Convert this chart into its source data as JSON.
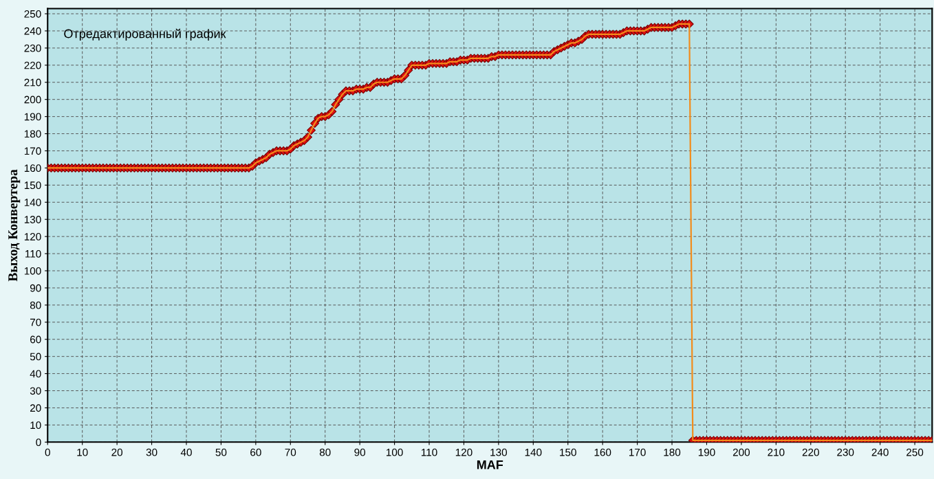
{
  "chart_data": {
    "type": "line",
    "xlabel": "MAF",
    "ylabel": "Выход Конвертера",
    "annotations": [
      "Отредактированный график"
    ],
    "xlim": [
      0,
      255
    ],
    "ylim": [
      0,
      253
    ],
    "xticks": [
      0,
      10,
      20,
      30,
      40,
      50,
      60,
      70,
      80,
      90,
      100,
      110,
      120,
      130,
      140,
      150,
      160,
      170,
      180,
      190,
      200,
      210,
      220,
      230,
      240,
      250
    ],
    "yticks": [
      0,
      10,
      20,
      30,
      40,
      50,
      60,
      70,
      80,
      90,
      100,
      110,
      120,
      130,
      140,
      150,
      160,
      170,
      180,
      190,
      200,
      210,
      220,
      230,
      240,
      250
    ],
    "grid": true,
    "marker": "diamond",
    "line_style": "solid",
    "series": [
      {
        "color": "#dd1111",
        "x": [
          0,
          1,
          2,
          3,
          4,
          5,
          6,
          7,
          8,
          9,
          10,
          11,
          12,
          13,
          14,
          15,
          16,
          17,
          18,
          19,
          20,
          21,
          22,
          23,
          24,
          25,
          26,
          27,
          28,
          29,
          30,
          31,
          32,
          33,
          34,
          35,
          36,
          37,
          38,
          39,
          40,
          41,
          42,
          43,
          44,
          45,
          46,
          47,
          48,
          49,
          50,
          51,
          52,
          53,
          54,
          55,
          56,
          57,
          58,
          59,
          60,
          61,
          62,
          63,
          64,
          65,
          66,
          67,
          68,
          69,
          70,
          71,
          72,
          73,
          74,
          75,
          76,
          77,
          78,
          79,
          80,
          81,
          82,
          83,
          84,
          85,
          86,
          87,
          88,
          89,
          90,
          91,
          92,
          93,
          94,
          95,
          96,
          97,
          98,
          99,
          100,
          101,
          102,
          103,
          104,
          105,
          106,
          107,
          108,
          109,
          110,
          111,
          112,
          113,
          114,
          115,
          116,
          117,
          118,
          119,
          120,
          121,
          122,
          123,
          124,
          125,
          126,
          127,
          128,
          129,
          130,
          131,
          132,
          133,
          134,
          135,
          136,
          137,
          138,
          139,
          140,
          141,
          142,
          143,
          144,
          145,
          146,
          147,
          148,
          149,
          150,
          151,
          152,
          153,
          154,
          155,
          156,
          157,
          158,
          159,
          160,
          161,
          162,
          163,
          164,
          165,
          166,
          167,
          168,
          169,
          170,
          171,
          172,
          173,
          174,
          175,
          176,
          177,
          178,
          179,
          180,
          181,
          182,
          183,
          184,
          185,
          186,
          187,
          188,
          189,
          190,
          191,
          192,
          193,
          194,
          195,
          196,
          197,
          198,
          199,
          200,
          201,
          202,
          203,
          204,
          205,
          206,
          207,
          208,
          209,
          210,
          211,
          212,
          213,
          214,
          215,
          216,
          217,
          218,
          219,
          220,
          221,
          222,
          223,
          224,
          225,
          226,
          227,
          228,
          229,
          230,
          231,
          232,
          233,
          234,
          235,
          236,
          237,
          238,
          239,
          240,
          241,
          242,
          243,
          244,
          245,
          246,
          247,
          248,
          249,
          250,
          251,
          252,
          253,
          254,
          255
        ],
        "values": [
          160,
          160,
          160,
          160,
          160,
          160,
          160,
          160,
          160,
          160,
          160,
          160,
          160,
          160,
          160,
          160,
          160,
          160,
          160,
          160,
          160,
          160,
          160,
          160,
          160,
          160,
          160,
          160,
          160,
          160,
          160,
          160,
          160,
          160,
          160,
          160,
          160,
          160,
          160,
          160,
          160,
          160,
          160,
          160,
          160,
          160,
          160,
          160,
          160,
          160,
          160,
          160,
          160,
          160,
          160,
          160,
          160,
          160,
          160,
          161,
          163,
          164,
          165,
          166,
          168,
          169,
          170,
          170,
          170,
          170,
          171,
          173,
          174,
          175,
          176,
          178,
          182,
          186,
          189,
          190,
          190,
          191,
          193,
          197,
          200,
          203,
          205,
          205,
          205,
          206,
          206,
          206,
          207,
          207,
          209,
          210,
          210,
          210,
          210,
          211,
          212,
          212,
          212,
          214,
          217,
          220,
          220,
          220,
          220,
          220,
          221,
          221,
          221,
          221,
          221,
          221,
          222,
          222,
          222,
          223,
          223,
          223,
          224,
          224,
          224,
          224,
          224,
          224,
          225,
          225,
          226,
          226,
          226,
          226,
          226,
          226,
          226,
          226,
          226,
          226,
          226,
          226,
          226,
          226,
          226,
          226,
          228,
          229,
          230,
          231,
          232,
          233,
          233,
          234,
          235,
          237,
          238,
          238,
          238,
          238,
          238,
          238,
          238,
          238,
          238,
          238,
          239,
          240,
          240,
          240,
          240,
          240,
          240,
          241,
          242,
          242,
          242,
          242,
          242,
          242,
          242,
          243,
          244,
          244,
          244,
          244,
          1,
          1,
          1,
          1,
          1,
          1,
          1,
          1,
          1,
          1,
          1,
          1,
          1,
          1,
          1,
          1,
          1,
          1,
          1,
          1,
          1,
          1,
          1,
          1,
          1,
          1,
          1,
          1,
          1,
          1,
          1,
          1,
          1,
          1,
          1,
          1,
          1,
          1,
          1,
          1,
          1,
          1,
          1,
          1,
          1,
          1,
          1,
          1,
          1,
          1,
          1,
          1,
          1,
          1,
          1,
          1,
          1,
          1,
          1,
          1,
          1,
          1,
          1,
          1,
          1,
          1,
          1,
          1,
          1,
          1
        ]
      }
    ]
  }
}
